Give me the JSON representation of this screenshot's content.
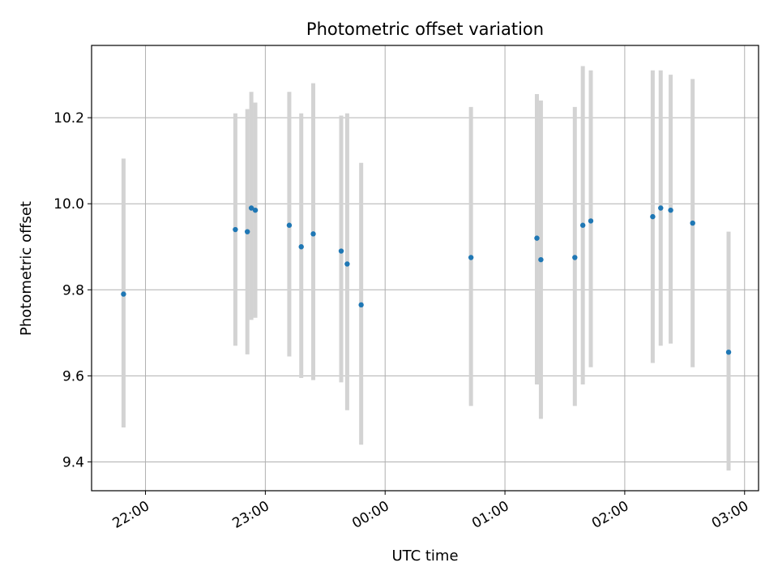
{
  "chart_data": {
    "type": "scatter",
    "title": "Photometric offset variation",
    "xlabel": "UTC time",
    "ylabel": "Photometric offset",
    "xlim": [
      "21:33",
      "03:07"
    ],
    "ylim": [
      9.333,
      10.368
    ],
    "x_ticks": [
      "22:00",
      "23:00",
      "00:00",
      "01:00",
      "02:00",
      "03:00"
    ],
    "y_ticks": [
      9.4,
      9.6,
      9.8,
      10.0,
      10.2
    ],
    "grid": true,
    "legend": "none",
    "colors": {
      "point": "#1f77b4",
      "errorbar": "#d3d3d3",
      "grid": "#b0b0b0",
      "frame": "#000000"
    },
    "points": [
      {
        "x": "21:49",
        "y": 9.79,
        "yerr_low": 9.48,
        "yerr_high": 10.105
      },
      {
        "x": "22:45",
        "y": 9.94,
        "yerr_low": 9.67,
        "yerr_high": 10.21
      },
      {
        "x": "22:51",
        "y": 9.935,
        "yerr_low": 9.65,
        "yerr_high": 10.22
      },
      {
        "x": "22:53",
        "y": 9.99,
        "yerr_low": 9.73,
        "yerr_high": 10.26
      },
      {
        "x": "22:55",
        "y": 9.985,
        "yerr_low": 9.735,
        "yerr_high": 10.235
      },
      {
        "x": "23:12",
        "y": 9.95,
        "yerr_low": 9.645,
        "yerr_high": 10.26
      },
      {
        "x": "23:18",
        "y": 9.9,
        "yerr_low": 9.595,
        "yerr_high": 10.21
      },
      {
        "x": "23:24",
        "y": 9.93,
        "yerr_low": 9.59,
        "yerr_high": 10.28
      },
      {
        "x": "23:38",
        "y": 9.89,
        "yerr_low": 9.585,
        "yerr_high": 10.205
      },
      {
        "x": "23:41",
        "y": 9.86,
        "yerr_low": 9.52,
        "yerr_high": 10.21
      },
      {
        "x": "23:48",
        "y": 9.765,
        "yerr_low": 9.44,
        "yerr_high": 10.095
      },
      {
        "x": "00:43",
        "y": 9.875,
        "yerr_low": 9.53,
        "yerr_high": 10.225
      },
      {
        "x": "01:16",
        "y": 9.92,
        "yerr_low": 9.58,
        "yerr_high": 10.255
      },
      {
        "x": "01:18",
        "y": 9.87,
        "yerr_low": 9.5,
        "yerr_high": 10.24
      },
      {
        "x": "01:35",
        "y": 9.875,
        "yerr_low": 9.53,
        "yerr_high": 10.225
      },
      {
        "x": "01:39",
        "y": 9.95,
        "yerr_low": 9.58,
        "yerr_high": 10.32
      },
      {
        "x": "01:43",
        "y": 9.96,
        "yerr_low": 9.62,
        "yerr_high": 10.31
      },
      {
        "x": "02:14",
        "y": 9.97,
        "yerr_low": 9.63,
        "yerr_high": 10.31
      },
      {
        "x": "02:18",
        "y": 9.99,
        "yerr_low": 9.67,
        "yerr_high": 10.31
      },
      {
        "x": "02:23",
        "y": 9.985,
        "yerr_low": 9.675,
        "yerr_high": 10.3
      },
      {
        "x": "02:34",
        "y": 9.955,
        "yerr_low": 9.62,
        "yerr_high": 10.29
      },
      {
        "x": "02:52",
        "y": 9.655,
        "yerr_low": 9.38,
        "yerr_high": 9.935
      }
    ]
  }
}
